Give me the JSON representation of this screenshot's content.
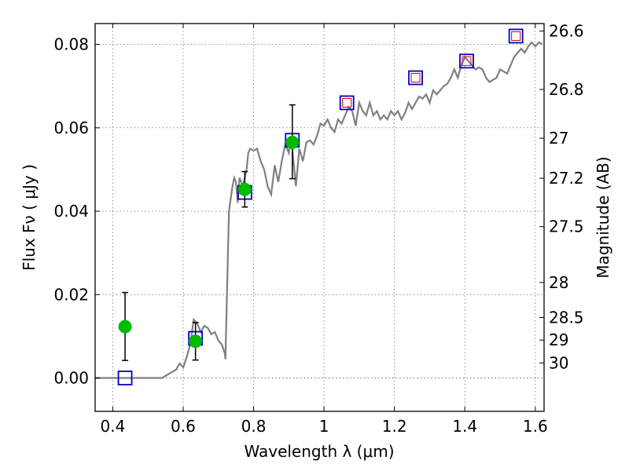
{
  "chart_data": {
    "type": "scatter",
    "title": "",
    "xlabel": "Wavelength  λ (μm)",
    "ylabel": "Flux  Fν  ( μJy )",
    "ylabel_right": "Magnitude (AB)",
    "xlim": [
      0.35,
      1.625
    ],
    "ylim": [
      -0.008,
      0.085
    ],
    "grid": true,
    "x_ticks": [
      0.4,
      0.6,
      0.8,
      1.0,
      1.2,
      1.4,
      1.6
    ],
    "x_tick_labels": [
      "0.4",
      "0.6",
      "0.8",
      "1",
      "1.2",
      "1.4",
      "1.6"
    ],
    "y_ticks": [
      0.0,
      0.02,
      0.04,
      0.06,
      0.08
    ],
    "y_tick_labels": [
      "0.00",
      "0.02",
      "0.04",
      "0.06",
      "0.08"
    ],
    "right_ticks": [
      {
        "label": "26.6",
        "flux": 0.0832
      },
      {
        "label": "26.8",
        "flux": 0.0692
      },
      {
        "label": "27",
        "flux": 0.0575
      },
      {
        "label": "27.2",
        "flux": 0.0479
      },
      {
        "label": "27.5",
        "flux": 0.0363
      },
      {
        "label": "28",
        "flux": 0.0229
      },
      {
        "label": "28.5",
        "flux": 0.0145
      },
      {
        "label": "29",
        "flux": 0.0091
      },
      {
        "label": "30",
        "flux": 0.0036
      }
    ],
    "colors": {
      "model": "#808080",
      "observed": "#00bb00",
      "model_box": "#0000cc",
      "model_box_inner": "#cc0000",
      "errorbar": "#000000"
    },
    "series": [
      {
        "kind": "line",
        "points": [
          [
            0.35,
            0.0
          ],
          [
            0.54,
            0.0
          ],
          [
            0.56,
            0.001
          ],
          [
            0.58,
            0.002
          ],
          [
            0.59,
            0.0035
          ],
          [
            0.6,
            0.0025
          ],
          [
            0.61,
            0.005
          ],
          [
            0.62,
            0.008
          ],
          [
            0.63,
            0.014
          ],
          [
            0.64,
            0.013
          ],
          [
            0.65,
            0.011
          ],
          [
            0.66,
            0.0125
          ],
          [
            0.67,
            0.012
          ],
          [
            0.68,
            0.0105
          ],
          [
            0.69,
            0.011
          ],
          [
            0.7,
            0.009
          ],
          [
            0.71,
            0.008
          ],
          [
            0.718,
            0.006
          ],
          [
            0.72,
            0.0045
          ],
          [
            0.73,
            0.04
          ],
          [
            0.74,
            0.046
          ],
          [
            0.745,
            0.048
          ],
          [
            0.75,
            0.047
          ],
          [
            0.755,
            0.042
          ],
          [
            0.76,
            0.048
          ],
          [
            0.77,
            0.046
          ],
          [
            0.78,
            0.05
          ],
          [
            0.785,
            0.054
          ],
          [
            0.79,
            0.055
          ],
          [
            0.8,
            0.0545
          ],
          [
            0.81,
            0.055
          ],
          [
            0.82,
            0.052
          ],
          [
            0.83,
            0.05
          ],
          [
            0.84,
            0.046
          ],
          [
            0.85,
            0.044
          ],
          [
            0.86,
            0.051
          ],
          [
            0.87,
            0.047
          ],
          [
            0.88,
            0.052
          ],
          [
            0.89,
            0.056
          ],
          [
            0.9,
            0.054
          ],
          [
            0.905,
            0.057
          ],
          [
            0.91,
            0.055
          ],
          [
            0.92,
            0.046
          ],
          [
            0.93,
            0.055
          ],
          [
            0.94,
            0.052
          ],
          [
            0.95,
            0.0565
          ],
          [
            0.96,
            0.057
          ],
          [
            0.97,
            0.056
          ],
          [
            0.98,
            0.058
          ],
          [
            0.99,
            0.061
          ],
          [
            1.0,
            0.0605
          ],
          [
            1.01,
            0.062
          ],
          [
            1.02,
            0.06
          ],
          [
            1.03,
            0.059
          ],
          [
            1.04,
            0.062
          ],
          [
            1.05,
            0.061
          ],
          [
            1.06,
            0.063
          ],
          [
            1.07,
            0.065
          ],
          [
            1.08,
            0.064
          ],
          [
            1.09,
            0.0605
          ],
          [
            1.1,
            0.066
          ],
          [
            1.11,
            0.064
          ],
          [
            1.12,
            0.063
          ],
          [
            1.13,
            0.066
          ],
          [
            1.14,
            0.063
          ],
          [
            1.15,
            0.064
          ],
          [
            1.16,
            0.062
          ],
          [
            1.17,
            0.063
          ],
          [
            1.18,
            0.062
          ],
          [
            1.19,
            0.064
          ],
          [
            1.2,
            0.063
          ],
          [
            1.21,
            0.064
          ],
          [
            1.22,
            0.062
          ],
          [
            1.23,
            0.0635
          ],
          [
            1.24,
            0.066
          ],
          [
            1.25,
            0.0645
          ],
          [
            1.26,
            0.066
          ],
          [
            1.27,
            0.0675
          ],
          [
            1.28,
            0.067
          ],
          [
            1.29,
            0.068
          ],
          [
            1.3,
            0.066
          ],
          [
            1.31,
            0.069
          ],
          [
            1.32,
            0.068
          ],
          [
            1.33,
            0.069
          ],
          [
            1.34,
            0.07
          ],
          [
            1.35,
            0.0705
          ],
          [
            1.36,
            0.072
          ],
          [
            1.37,
            0.074
          ],
          [
            1.38,
            0.072
          ],
          [
            1.39,
            0.075
          ],
          [
            1.4,
            0.077
          ],
          [
            1.41,
            0.076
          ],
          [
            1.42,
            0.075
          ],
          [
            1.43,
            0.074
          ],
          [
            1.44,
            0.0745
          ],
          [
            1.45,
            0.074
          ],
          [
            1.46,
            0.072
          ],
          [
            1.47,
            0.071
          ],
          [
            1.48,
            0.0715
          ],
          [
            1.49,
            0.072
          ],
          [
            1.5,
            0.074
          ],
          [
            1.51,
            0.0735
          ],
          [
            1.52,
            0.073
          ],
          [
            1.53,
            0.075
          ],
          [
            1.54,
            0.077
          ],
          [
            1.55,
            0.078
          ],
          [
            1.56,
            0.079
          ],
          [
            1.57,
            0.078
          ],
          [
            1.58,
            0.0795
          ],
          [
            1.59,
            0.0805
          ],
          [
            1.6,
            0.0795
          ],
          [
            1.61,
            0.0805
          ],
          [
            1.62,
            0.08
          ]
        ]
      },
      {
        "kind": "model_boxes",
        "points": [
          {
            "x": 0.435,
            "y": 0.0,
            "inner": false
          },
          {
            "x": 0.635,
            "y": 0.0095,
            "inner": false
          },
          {
            "x": 0.775,
            "y": 0.0445,
            "inner": false
          },
          {
            "x": 0.91,
            "y": 0.057,
            "inner": false
          },
          {
            "x": 1.065,
            "y": 0.066,
            "inner": true
          },
          {
            "x": 1.26,
            "y": 0.072,
            "inner": true
          },
          {
            "x": 1.405,
            "y": 0.076,
            "inner": true
          },
          {
            "x": 1.545,
            "y": 0.082,
            "inner": true
          }
        ]
      },
      {
        "kind": "observed",
        "points": [
          {
            "x": 0.435,
            "y": 0.0123,
            "err_low": 0.0042,
            "err_high": 0.0205
          },
          {
            "x": 0.635,
            "y": 0.0088,
            "err_low": 0.0043,
            "err_high": 0.0133
          },
          {
            "x": 0.775,
            "y": 0.0452,
            "err_low": 0.041,
            "err_high": 0.0495
          },
          {
            "x": 0.91,
            "y": 0.0565,
            "err_low": 0.0478,
            "err_high": 0.0655
          }
        ]
      }
    ]
  }
}
